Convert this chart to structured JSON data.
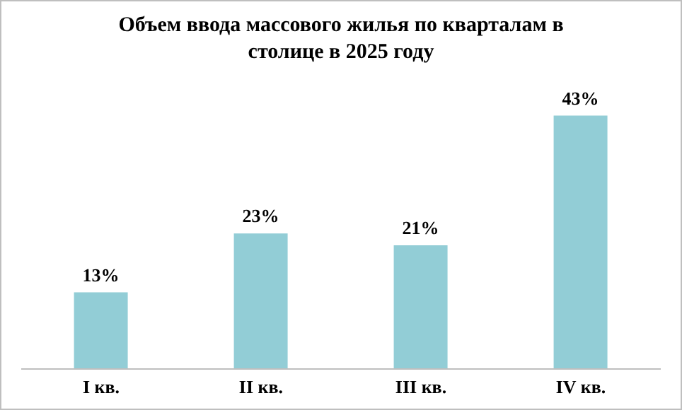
{
  "chart_data": {
    "type": "bar",
    "title": "Объем ввода массового жилья по кварталам в столице в 2025 году",
    "categories": [
      "I кв.",
      "II кв.",
      "III кв.",
      "IV кв."
    ],
    "values": [
      13,
      23,
      21,
      43
    ],
    "value_labels": [
      "13%",
      "23%",
      "21%",
      "43%"
    ],
    "color": "#92cdd6",
    "grid": false,
    "legend": false
  }
}
